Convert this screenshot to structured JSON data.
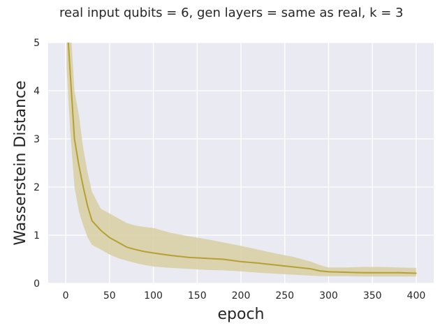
{
  "chart_data": {
    "type": "line",
    "title": "real input qubits = 6, gen layers = same as real, k = 3",
    "xlabel": "epoch",
    "ylabel": "Wasserstein Distance",
    "xlim": [
      -20,
      420
    ],
    "ylim": [
      0,
      5
    ],
    "xticks": [
      0,
      50,
      100,
      150,
      200,
      250,
      300,
      350,
      400
    ],
    "yticks": [
      0,
      1,
      2,
      3,
      4,
      5
    ],
    "grid": true,
    "colors": {
      "line": "#b5a035",
      "band": "#d8cfa1",
      "background": "#eaeaf2",
      "grid": "#ffffff"
    },
    "series": [
      {
        "x": [
          1,
          5,
          10,
          15,
          20,
          25,
          30,
          40,
          50,
          60,
          70,
          80,
          90,
          100,
          120,
          140,
          160,
          180,
          200,
          220,
          240,
          260,
          280,
          290,
          300,
          320,
          340,
          360,
          380,
          400
        ],
        "y": [
          5.6,
          4.4,
          3.0,
          2.45,
          2.0,
          1.6,
          1.3,
          1.1,
          0.95,
          0.85,
          0.75,
          0.7,
          0.66,
          0.63,
          0.58,
          0.54,
          0.52,
          0.5,
          0.45,
          0.42,
          0.38,
          0.34,
          0.3,
          0.26,
          0.24,
          0.23,
          0.22,
          0.22,
          0.22,
          0.21
        ],
        "lower": [
          4.5,
          3.2,
          2.0,
          1.5,
          1.2,
          0.95,
          0.8,
          0.7,
          0.6,
          0.52,
          0.47,
          0.42,
          0.38,
          0.35,
          0.32,
          0.3,
          0.28,
          0.27,
          0.25,
          0.22,
          0.2,
          0.18,
          0.16,
          0.15,
          0.15,
          0.15,
          0.14,
          0.14,
          0.14,
          0.14
        ],
        "upper": [
          6.0,
          5.5,
          4.0,
          3.5,
          2.8,
          2.3,
          1.9,
          1.55,
          1.45,
          1.35,
          1.25,
          1.2,
          1.17,
          1.15,
          1.05,
          0.98,
          0.92,
          0.85,
          0.78,
          0.7,
          0.62,
          0.55,
          0.45,
          0.38,
          0.33,
          0.33,
          0.34,
          0.34,
          0.33,
          0.32
        ]
      }
    ]
  }
}
